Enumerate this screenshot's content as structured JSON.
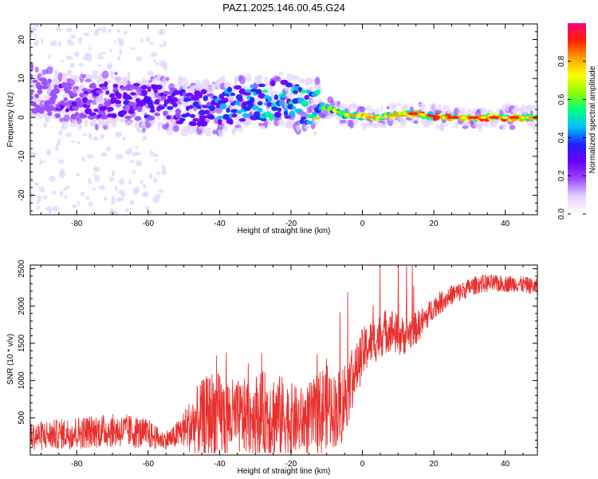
{
  "figure": {
    "title": "PAZ1.2025.146.00.45.G24"
  },
  "chart_data": [
    {
      "type": "heatmap",
      "title": "PAZ1.2025.146.00.45.G24",
      "xlabel": "Height of straight line (km)",
      "ylabel": "Frequency (Hz)",
      "xlim": [
        -93,
        49
      ],
      "ylim": [
        -25,
        24
      ],
      "xticks": [
        -80,
        -60,
        -40,
        -20,
        0,
        20,
        40
      ],
      "yticks": [
        -20,
        -10,
        0,
        10,
        20
      ],
      "colorbar": {
        "label": "Normalized spectral amplitude",
        "range": [
          0,
          1
        ],
        "ticks": [
          0.0,
          0.2,
          0.4,
          0.6,
          0.8
        ],
        "tick_labels": [
          "0.0",
          "0.2",
          "0.4",
          "0.6",
          "0.8"
        ],
        "colormap": [
          "#ffffff",
          "#e4d6ff",
          "#9a4dff",
          "#6a00ff",
          "#2020ff",
          "#00bfff",
          "#00ff80",
          "#8cff00",
          "#ffff00",
          "#ffa000",
          "#ff2000",
          "#ff0080"
        ]
      },
      "ridge": {
        "x": [
          -93,
          -85,
          -78,
          -70,
          -62,
          -55,
          -48,
          -40,
          -33,
          -27,
          -23,
          -18,
          -14,
          -10,
          -6,
          0,
          6,
          10,
          15,
          22,
          30,
          40,
          49
        ],
        "frequency_hz": [
          6.5,
          4.5,
          4.0,
          4.5,
          4.0,
          3.5,
          2.5,
          3.0,
          3.5,
          4.0,
          5.0,
          3.5,
          3.0,
          2.5,
          1.0,
          0.0,
          0.0,
          1.0,
          1.0,
          0.0,
          0.0,
          0.0,
          0.0
        ],
        "peak_amplitude": [
          0.2,
          0.22,
          0.25,
          0.3,
          0.3,
          0.32,
          0.35,
          0.4,
          0.45,
          0.5,
          0.5,
          0.5,
          0.55,
          0.6,
          0.65,
          0.75,
          0.7,
          0.75,
          0.8,
          0.85,
          0.8,
          0.8,
          0.75
        ]
      },
      "noise_region_x": [
        -93,
        -55
      ],
      "noise_frequency_spread_hz": [
        -25,
        24
      ]
    },
    {
      "type": "line",
      "xlabel": "Height of straight line (km)",
      "ylabel": "SNR (10 * v/v)",
      "xlim": [
        -93,
        49
      ],
      "ylim": [
        0,
        2550
      ],
      "xticks": [
        -80,
        -60,
        -40,
        -20,
        0,
        20,
        40
      ],
      "yticks": [
        500,
        1000,
        1500,
        2000,
        2500
      ],
      "color": "#e8312f",
      "series": [
        {
          "name": "SNR",
          "x": [
            -93,
            -90,
            -85,
            -80,
            -75,
            -70,
            -65,
            -60,
            -56,
            -53,
            -50,
            -46,
            -42,
            -38,
            -34,
            -30,
            -26,
            -22,
            -18,
            -14,
            -12,
            -10,
            -8,
            -6,
            -4,
            -2,
            0,
            2,
            4,
            6,
            8,
            10,
            12,
            15,
            18,
            20,
            22,
            25,
            28,
            30,
            33,
            36,
            40,
            43,
            46,
            49
          ],
          "baseline": [
            250,
            260,
            280,
            300,
            320,
            330,
            320,
            280,
            200,
            230,
            350,
            450,
            550,
            500,
            500,
            550,
            550,
            500,
            450,
            500,
            550,
            700,
            600,
            650,
            900,
            1100,
            1350,
            1500,
            1550,
            1650,
            1700,
            1600,
            1600,
            1700,
            1850,
            2000,
            2050,
            2150,
            2200,
            2250,
            2300,
            2300,
            2300,
            2300,
            2280,
            2250
          ],
          "noise_amplitude": [
            180,
            200,
            200,
            220,
            220,
            220,
            220,
            200,
            120,
            150,
            250,
            500,
            600,
            550,
            500,
            550,
            600,
            550,
            450,
            500,
            600,
            600,
            500,
            550,
            500,
            350,
            350,
            300,
            300,
            300,
            300,
            280,
            250,
            220,
            180,
            150,
            150,
            130,
            130,
            120,
            120,
            120,
            110,
            110,
            110,
            110
          ]
        }
      ]
    }
  ]
}
